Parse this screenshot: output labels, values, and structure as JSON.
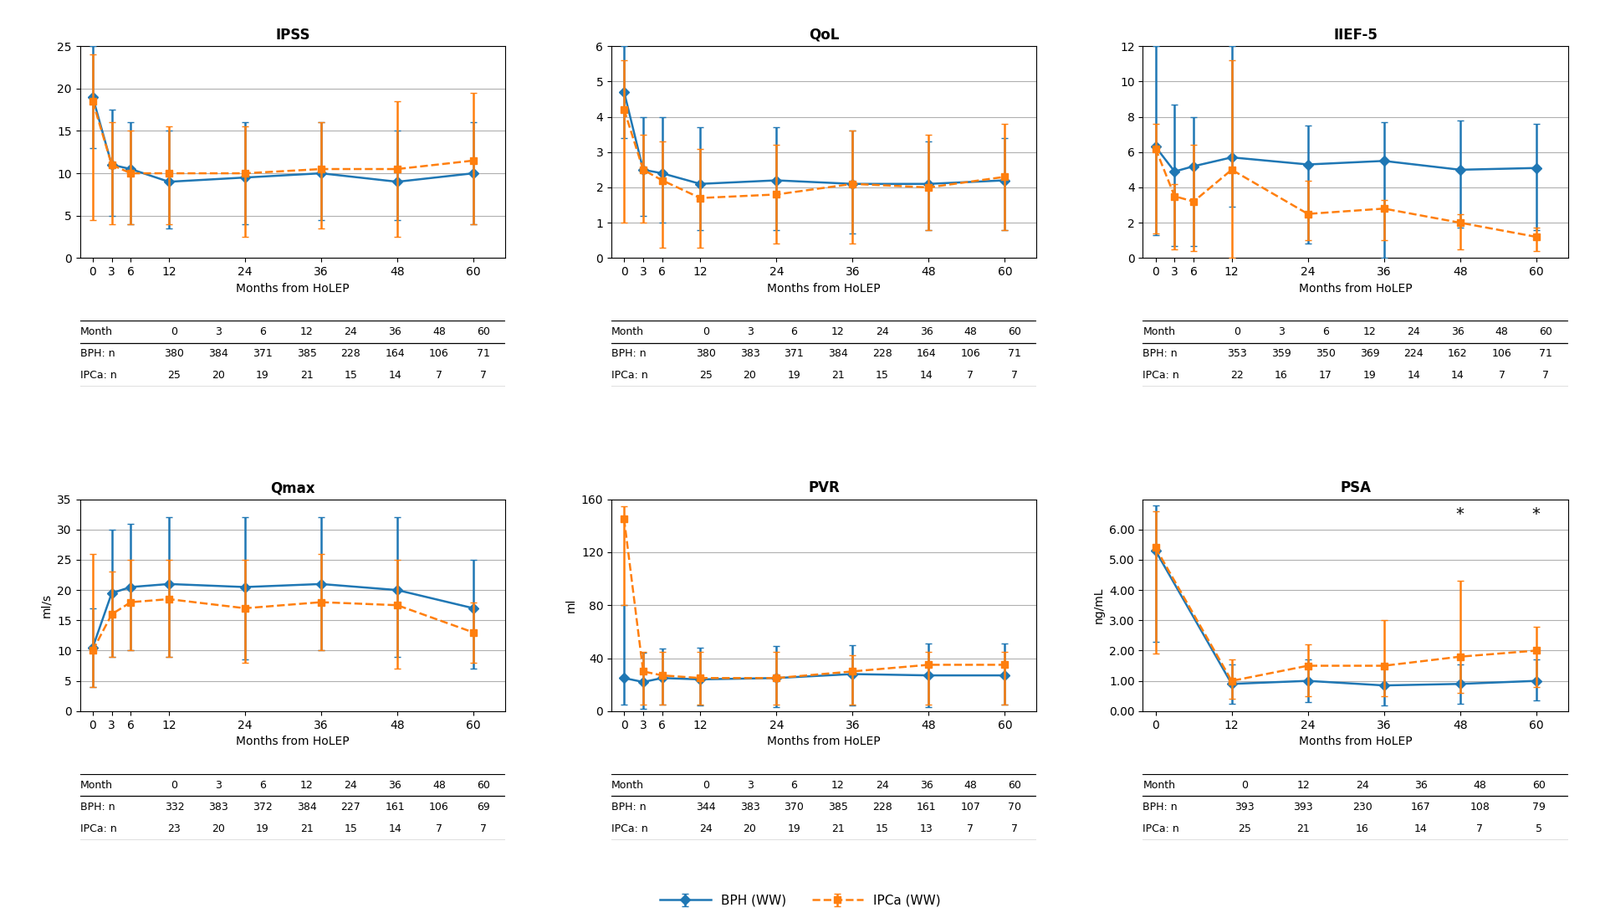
{
  "chart_data": [
    {
      "type": "line",
      "title": "IPSS",
      "x_label": "Months from HoLEP",
      "x": [
        0,
        3,
        6,
        12,
        24,
        36,
        48,
        60
      ],
      "xlim": [
        -2,
        65
      ],
      "xticks": [
        0,
        3,
        6,
        12,
        24,
        36,
        48,
        60
      ],
      "ylim": [
        0,
        25
      ],
      "yticks": [
        0,
        5,
        10,
        15,
        20,
        25
      ],
      "grid": "y",
      "series": [
        {
          "name": "BPH (WW)",
          "marker": "diamond",
          "line_style": "solid",
          "values": [
            19.0,
            11.0,
            10.5,
            9.0,
            9.5,
            10.0,
            9.0,
            10.0
          ],
          "error_low": [
            6.0,
            6.0,
            6.5,
            5.5,
            5.5,
            5.5,
            4.5,
            6.0
          ],
          "error_high": [
            6.0,
            6.5,
            5.5,
            6.0,
            6.5,
            6.0,
            6.0,
            6.0
          ]
        },
        {
          "name": "IPCa (WW)",
          "marker": "square",
          "line_style": "dashed",
          "values": [
            18.5,
            11.0,
            10.0,
            10.0,
            10.0,
            10.5,
            10.5,
            11.5
          ],
          "error_low": [
            14.0,
            7.0,
            6.0,
            6.0,
            7.5,
            7.0,
            8.0,
            7.5
          ],
          "error_high": [
            5.5,
            5.0,
            5.0,
            5.5,
            5.5,
            5.5,
            8.0,
            8.0
          ]
        }
      ],
      "table": [
        [
          "Month",
          "0",
          "3",
          "6",
          "12",
          "24",
          "36",
          "48",
          "60"
        ],
        [
          "BPH: n",
          "380",
          "384",
          "371",
          "385",
          "228",
          "164",
          "106",
          "71"
        ],
        [
          "IPCa: n",
          "25",
          "20",
          "19",
          "21",
          "15",
          "14",
          "7",
          "7"
        ]
      ]
    },
    {
      "type": "line",
      "title": "QoL",
      "x_label": "Months from HoLEP",
      "x": [
        0,
        3,
        6,
        12,
        24,
        36,
        48,
        60
      ],
      "xlim": [
        -2,
        65
      ],
      "xticks": [
        0,
        3,
        6,
        12,
        24,
        36,
        48,
        60
      ],
      "ylim": [
        0,
        6
      ],
      "yticks": [
        0,
        1,
        2,
        3,
        4,
        5,
        6
      ],
      "grid": "y",
      "series": [
        {
          "name": "BPH (WW)",
          "marker": "diamond",
          "line_style": "solid",
          "values": [
            4.7,
            2.5,
            2.4,
            2.1,
            2.2,
            2.1,
            2.1,
            2.2
          ],
          "error_low": [
            1.3,
            1.3,
            1.4,
            1.3,
            1.4,
            1.4,
            1.3,
            1.4
          ],
          "error_high": [
            1.3,
            1.5,
            1.6,
            1.6,
            1.5,
            1.5,
            1.2,
            1.2
          ]
        },
        {
          "name": "IPCa (WW)",
          "marker": "square",
          "line_style": "dashed",
          "values": [
            4.2,
            2.5,
            2.2,
            1.7,
            1.8,
            2.1,
            2.0,
            2.3
          ],
          "error_low": [
            3.2,
            1.5,
            1.9,
            1.4,
            1.4,
            1.7,
            1.2,
            1.5
          ],
          "error_high": [
            1.4,
            1.0,
            1.1,
            1.4,
            1.4,
            1.5,
            1.5,
            1.5
          ]
        }
      ],
      "table": [
        [
          "Month",
          "0",
          "3",
          "6",
          "12",
          "24",
          "36",
          "48",
          "60"
        ],
        [
          "BPH: n",
          "380",
          "383",
          "371",
          "384",
          "228",
          "164",
          "106",
          "71"
        ],
        [
          "IPCa: n",
          "25",
          "20",
          "19",
          "21",
          "15",
          "14",
          "7",
          "7"
        ]
      ]
    },
    {
      "type": "line",
      "title": "IIEF-5",
      "x_label": "Months from HoLEP",
      "x": [
        0,
        3,
        6,
        12,
        24,
        36,
        48,
        60
      ],
      "xlim": [
        -2,
        65
      ],
      "xticks": [
        0,
        3,
        6,
        12,
        24,
        36,
        48,
        60
      ],
      "ylim": [
        0,
        12
      ],
      "yticks": [
        0,
        2,
        4,
        6,
        8,
        10,
        12
      ],
      "grid": "y",
      "series": [
        {
          "name": "BPH (WW)",
          "marker": "diamond",
          "line_style": "solid",
          "values": [
            6.3,
            4.9,
            5.2,
            5.7,
            5.3,
            5.5,
            5.0,
            5.1
          ],
          "error_low": [
            5.0,
            4.2,
            4.5,
            2.8,
            4.5,
            5.5,
            3.3,
            3.5
          ],
          "error_high": [
            5.7,
            3.8,
            2.8,
            6.3,
            2.2,
            2.2,
            2.8,
            2.5
          ]
        },
        {
          "name": "IPCa (WW)",
          "marker": "square",
          "line_style": "dashed",
          "values": [
            6.2,
            3.5,
            3.2,
            5.0,
            2.5,
            2.8,
            2.0,
            1.2
          ],
          "error_low": [
            4.8,
            3.0,
            2.8,
            5.0,
            1.5,
            1.8,
            1.5,
            0.8
          ],
          "error_high": [
            1.4,
            0.7,
            3.2,
            6.2,
            1.9,
            0.5,
            0.5,
            0.5
          ]
        }
      ],
      "table": [
        [
          "Month",
          "0",
          "3",
          "6",
          "12",
          "24",
          "36",
          "48",
          "60"
        ],
        [
          "BPH: n",
          "353",
          "359",
          "350",
          "369",
          "224",
          "162",
          "106",
          "71"
        ],
        [
          "IPCa: n",
          "22",
          "16",
          "17",
          "19",
          "14",
          "14",
          "7",
          "7"
        ]
      ]
    },
    {
      "type": "line",
      "title": "Qmax",
      "x_label": "Months from HoLEP",
      "y_label": "ml/s",
      "x": [
        0,
        3,
        6,
        12,
        24,
        36,
        48,
        60
      ],
      "xlim": [
        -2,
        65
      ],
      "xticks": [
        0,
        3,
        6,
        12,
        24,
        36,
        48,
        60
      ],
      "ylim": [
        0,
        35
      ],
      "yticks": [
        0,
        5,
        10,
        15,
        20,
        25,
        30,
        35
      ],
      "grid": "y",
      "series": [
        {
          "name": "BPH (WW)",
          "marker": "diamond",
          "line_style": "solid",
          "values": [
            10.5,
            19.5,
            20.5,
            21.0,
            20.5,
            21.0,
            20.0,
            17.0
          ],
          "error_low": [
            6.5,
            10.5,
            10.5,
            12.0,
            12.0,
            11.0,
            11.0,
            10.0
          ],
          "error_high": [
            6.5,
            10.5,
            10.5,
            11.0,
            11.5,
            11.0,
            12.0,
            8.0
          ]
        },
        {
          "name": "IPCa (WW)",
          "marker": "square",
          "line_style": "dashed",
          "values": [
            10.0,
            16.0,
            18.0,
            18.5,
            17.0,
            18.0,
            17.5,
            13.0
          ],
          "error_low": [
            6.0,
            7.0,
            8.0,
            9.5,
            9.0,
            8.0,
            10.5,
            5.0
          ],
          "error_high": [
            16.0,
            7.0,
            7.0,
            6.5,
            8.0,
            8.0,
            7.5,
            5.0
          ]
        }
      ],
      "table": [
        [
          "Month",
          "0",
          "3",
          "6",
          "12",
          "24",
          "36",
          "48",
          "60"
        ],
        [
          "BPH: n",
          "332",
          "383",
          "372",
          "384",
          "227",
          "161",
          "106",
          "69"
        ],
        [
          "IPCa: n",
          "23",
          "20",
          "19",
          "21",
          "15",
          "14",
          "7",
          "7"
        ]
      ]
    },
    {
      "type": "line",
      "title": "PVR",
      "x_label": "Months from HoLEP",
      "y_label": "ml",
      "x": [
        0,
        3,
        6,
        12,
        24,
        36,
        48,
        60
      ],
      "xlim": [
        -2,
        65
      ],
      "xticks": [
        0,
        3,
        6,
        12,
        24,
        36,
        48,
        60
      ],
      "ylim": [
        0,
        160
      ],
      "yticks": [
        0,
        40,
        80,
        120,
        160
      ],
      "grid": "y",
      "series": [
        {
          "name": "BPH (WW)",
          "marker": "diamond",
          "line_style": "solid",
          "values": [
            25.0,
            22.0,
            25.0,
            24.0,
            25.0,
            28.0,
            27.0,
            27.0
          ],
          "error_low": [
            20.0,
            20.0,
            20.0,
            20.0,
            22.0,
            24.0,
            24.0,
            22.0
          ],
          "error_high": [
            55.0,
            22.0,
            22.0,
            24.0,
            24.0,
            22.0,
            24.0,
            24.0
          ]
        },
        {
          "name": "IPCa (WW)",
          "marker": "square",
          "line_style": "dashed",
          "values": [
            145.0,
            30.0,
            27.0,
            25.0,
            25.0,
            30.0,
            35.0,
            35.0
          ],
          "error_low": [
            65.0,
            25.0,
            22.0,
            20.0,
            20.0,
            25.0,
            30.0,
            30.0
          ],
          "error_high": [
            10.0,
            15.0,
            18.0,
            20.0,
            20.0,
            12.0,
            10.0,
            10.0
          ]
        }
      ],
      "table": [
        [
          "Month",
          "0",
          "3",
          "6",
          "12",
          "24",
          "36",
          "48",
          "60"
        ],
        [
          "BPH: n",
          "344",
          "383",
          "370",
          "385",
          "228",
          "161",
          "107",
          "70"
        ],
        [
          "IPCa: n",
          "24",
          "20",
          "19",
          "21",
          "15",
          "13",
          "7",
          "7"
        ]
      ]
    },
    {
      "type": "line",
      "title": "PSA",
      "x_label": "Months from HoLEP",
      "y_label": "ng/mL",
      "x": [
        0,
        12,
        24,
        36,
        48,
        60
      ],
      "xlim": [
        -2,
        65
      ],
      "xticks": [
        0,
        12,
        24,
        36,
        48,
        60
      ],
      "ylim": [
        0.0,
        7.0
      ],
      "yticks": [
        {
          "value": 0.0,
          "label": "0.00"
        },
        {
          "value": 1.0,
          "label": "1.00"
        },
        {
          "value": 2.0,
          "label": "2.00"
        },
        {
          "value": 3.0,
          "label": "3.00"
        },
        {
          "value": 4.0,
          "label": "4.00"
        },
        {
          "value": 5.0,
          "label": "5.00"
        },
        {
          "value": 6.0,
          "label": "6.00"
        }
      ],
      "grid": "y",
      "series": [
        {
          "name": "BPH (WW)",
          "marker": "diamond",
          "line_style": "solid",
          "values": [
            5.3,
            0.9,
            1.0,
            0.85,
            0.9,
            1.0
          ],
          "error_low": [
            3.0,
            0.65,
            0.7,
            0.65,
            0.65,
            0.65
          ],
          "error_high": [
            1.5,
            0.65,
            0.7,
            0.65,
            0.65,
            0.7
          ]
        },
        {
          "name": "IPCa (WW)",
          "marker": "square",
          "line_style": "dashed",
          "values": [
            5.4,
            1.0,
            1.5,
            1.5,
            1.8,
            2.0
          ],
          "error_low": [
            3.5,
            0.6,
            1.0,
            1.0,
            1.2,
            1.2
          ],
          "error_high": [
            1.2,
            0.7,
            0.7,
            1.5,
            2.5,
            0.8
          ]
        }
      ],
      "annotations": [
        {
          "x": 48,
          "y": 6.5,
          "text": "*"
        },
        {
          "x": 60,
          "y": 6.5,
          "text": "*"
        }
      ],
      "table": [
        [
          "Month",
          "0",
          "12",
          "24",
          "36",
          "48",
          "60"
        ],
        [
          "BPH: n",
          "393",
          "393",
          "230",
          "167",
          "108",
          "79"
        ],
        [
          "IPCa: n",
          "25",
          "21",
          "16",
          "14",
          "7",
          "5"
        ]
      ]
    }
  ],
  "legend": "lower center"
}
